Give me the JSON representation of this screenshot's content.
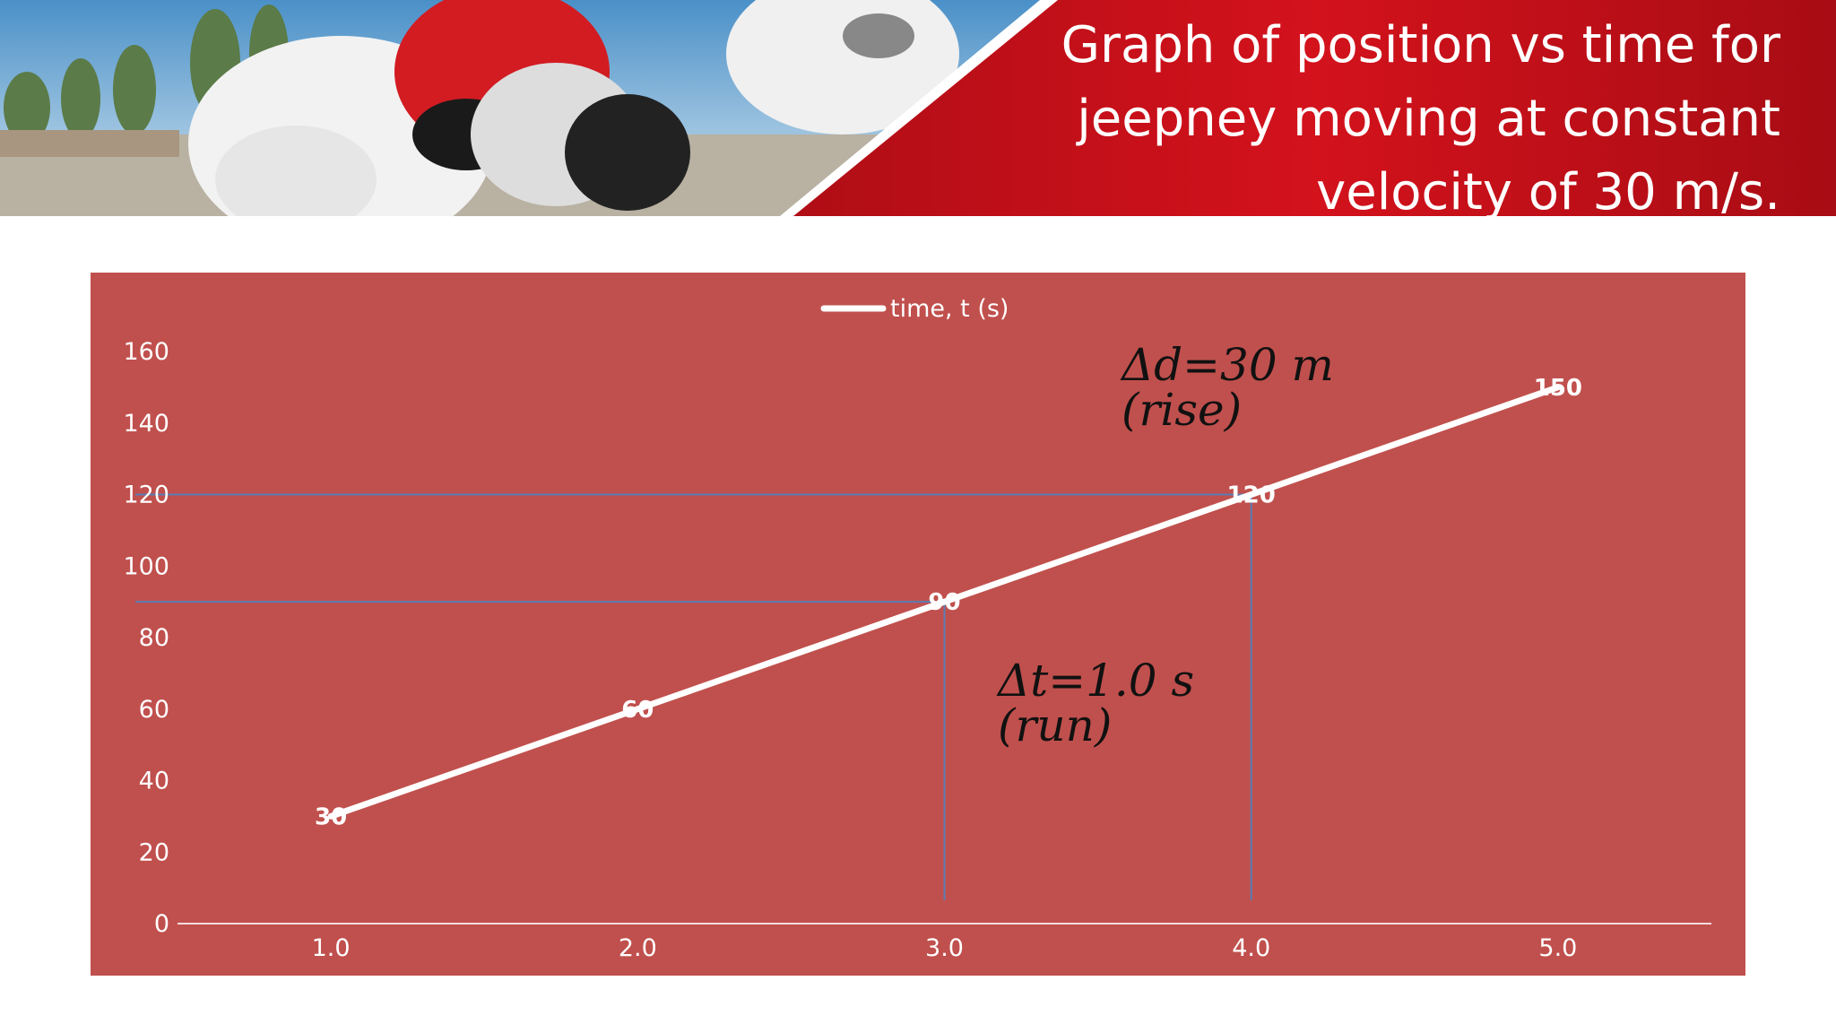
{
  "slide": {
    "title_lines": [
      "Graph of position vs time for",
      "jeepney moving at constant",
      "velocity of 30 m/s."
    ]
  },
  "colors": {
    "banner_red": "#c8141c",
    "chart_bg": "#c0504d",
    "line": "#ffffff",
    "guide": "#5b7bb5"
  },
  "annotations": {
    "rise_line1": "Δd=30 m",
    "rise_line2": "(rise)",
    "run_line1": "Δt=1.0 s",
    "run_line2": "(run)"
  },
  "chart_data": {
    "type": "line",
    "categories": [
      "1.0",
      "2.0",
      "3.0",
      "4.0",
      "5.0"
    ],
    "series": [
      {
        "name": "time, t (s)",
        "values": [
          30,
          60,
          90,
          120,
          150
        ],
        "color": "#ffffff"
      }
    ],
    "data_labels": [
      "30",
      "60",
      "90",
      "120",
      "150"
    ],
    "y_ticks": [
      0,
      20,
      40,
      60,
      80,
      100,
      120,
      140,
      160
    ],
    "ylim": [
      0,
      160
    ],
    "legend": "top-center",
    "grid": false,
    "guides": [
      {
        "category": "3.0",
        "value": 90
      },
      {
        "category": "4.0",
        "value": 120
      }
    ]
  }
}
